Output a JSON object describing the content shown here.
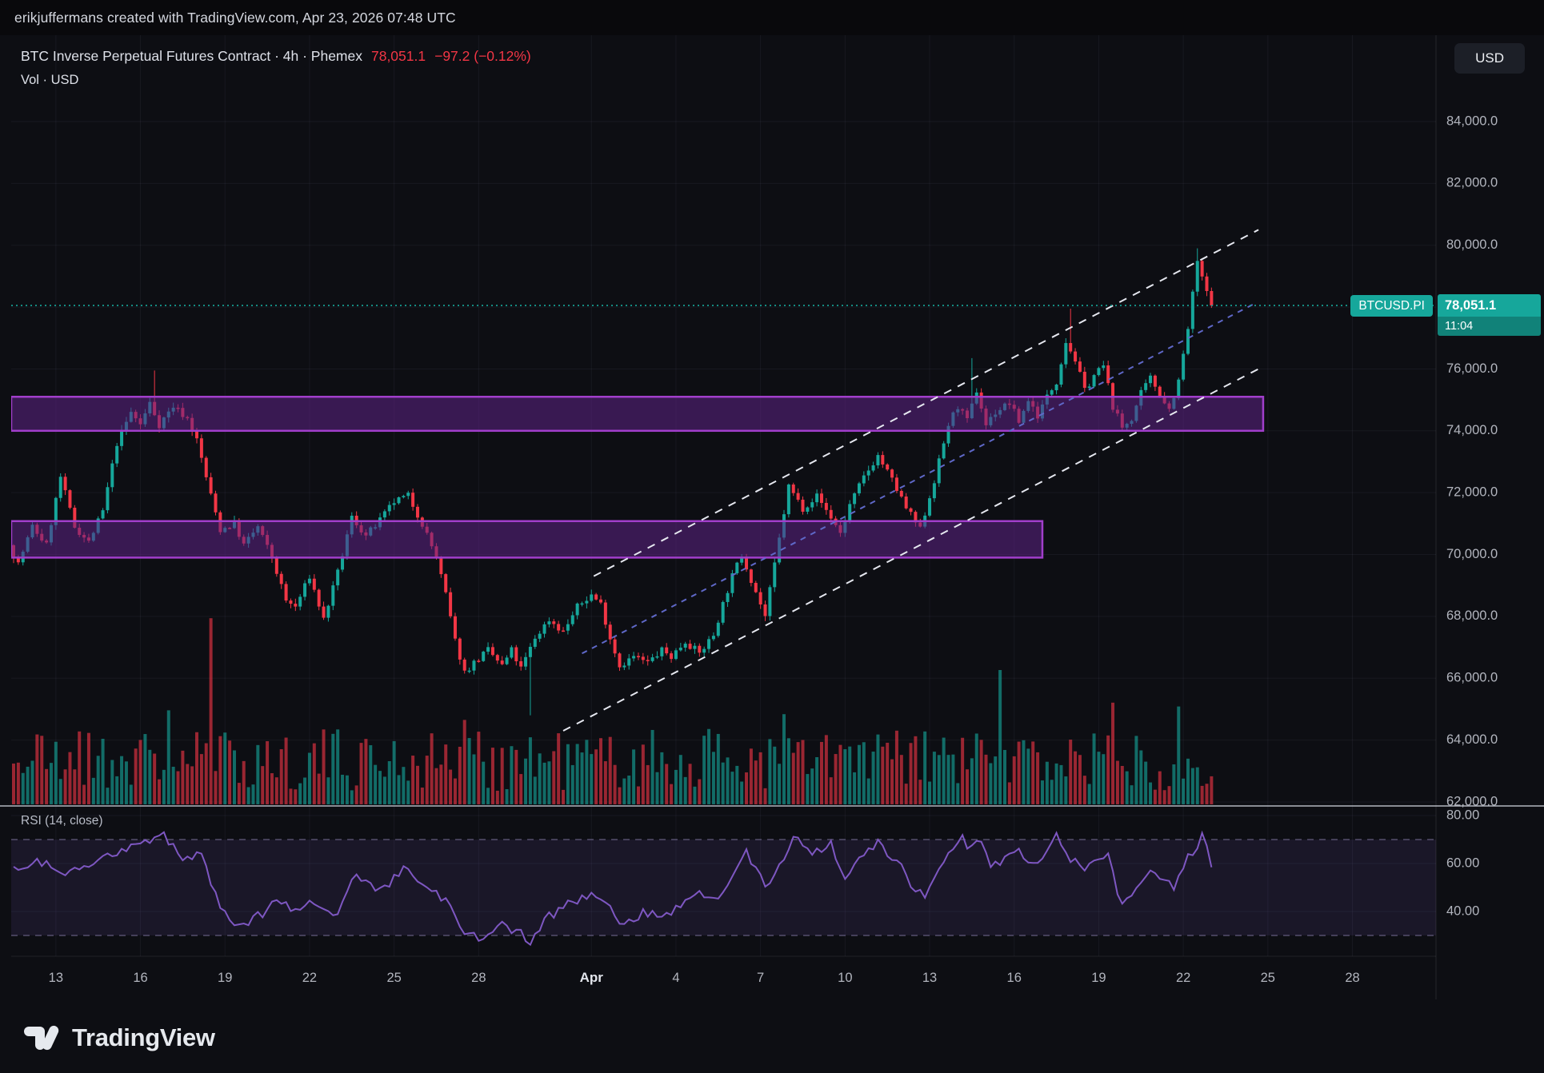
{
  "topbar": {
    "attribution": "erikjuffermans created with TradingView.com, Apr 23, 2026 07:48 UTC"
  },
  "header": {
    "symbol_line": "BTC Inverse Perpetual Futures Contract · 4h · Phemex",
    "price": "78,051.1",
    "change": "−97.2 (−0.12%)",
    "indicator_line": "Vol · USD"
  },
  "toolbar": {
    "currency_button": "USD"
  },
  "price_label": {
    "symbol": "BTCUSD.PI",
    "price": "78,051.1",
    "countdown": "11:04"
  },
  "footer": {
    "brand": "TradingView"
  },
  "colors": {
    "background": "#0d0e13",
    "topbar_background": "#09090c",
    "candle_up": "#16a79b",
    "candle_down": "#f23645",
    "accent": "#16a79b",
    "zone_fill": "rgba(94,34,135,0.55)",
    "zone_border": "#a13ecb",
    "channel_line": "#e6e8f0",
    "channel_median": "#5f68c8",
    "rsi_line": "#7e57c2",
    "rsi_band_fill": "rgba(126,87,194,0.12)",
    "rsi_level_line": "rgba(162,152,204,0.55)",
    "grid": "rgba(148,158,190,0.08)",
    "axis_text": "#b2b5be",
    "axis_text_strong": "#e2e5ec",
    "text": "#dde0e8",
    "pane_divider": "#cfd3dd"
  },
  "chart_data": {
    "type": "candlestick",
    "title": "BTC Inverse Perpetual Futures Contract",
    "interval": "4h",
    "exchange": "Phemex",
    "symbol": "BTCUSD.PI",
    "quote_currency": "USD",
    "last_price": 78051.1,
    "change": -97.2,
    "change_pct": -0.12,
    "as_of": "Apr 23, 2026 07:48 UTC",
    "y_axis": {
      "ticks": [
        84000,
        82000,
        80000,
        78000,
        76000,
        74000,
        72000,
        70000,
        68000,
        66000,
        64000,
        62000
      ],
      "labels": [
        "84,000.0",
        "82,000.0",
        "80,000.0",
        "78,000.0",
        "76,000.0",
        "74,000.0",
        "72,000.0",
        "70,000.0",
        "68,000.0",
        "66,000.0",
        "64,000.0",
        "62,000.0"
      ],
      "visible_range": [
        61200,
        84800
      ]
    },
    "x_axis": {
      "note": "4h candles, mid-March to Apr 23",
      "ticks": [
        {
          "index": 9,
          "label": "13"
        },
        {
          "index": 27,
          "label": "16"
        },
        {
          "index": 45,
          "label": "19"
        },
        {
          "index": 63,
          "label": "22"
        },
        {
          "index": 81,
          "label": "25"
        },
        {
          "index": 99,
          "label": "28"
        },
        {
          "index": 123,
          "label": "Apr",
          "strong": true
        },
        {
          "index": 141,
          "label": "4"
        },
        {
          "index": 159,
          "label": "7"
        },
        {
          "index": 177,
          "label": "10"
        },
        {
          "index": 195,
          "label": "13"
        },
        {
          "index": 213,
          "label": "16"
        },
        {
          "index": 231,
          "label": "19"
        },
        {
          "index": 249,
          "label": "22"
        },
        {
          "index": 267,
          "label": "25"
        },
        {
          "index": 285,
          "label": "28"
        }
      ]
    },
    "current_price_line": 78051.1,
    "candles": {
      "count": 256,
      "price_path_anchors": [
        [
          0,
          70300
        ],
        [
          2,
          69700
        ],
        [
          5,
          70900
        ],
        [
          8,
          70300
        ],
        [
          11,
          72500
        ],
        [
          14,
          70900
        ],
        [
          17,
          70400
        ],
        [
          20,
          71400
        ],
        [
          23,
          73600
        ],
        [
          26,
          74600
        ],
        [
          28,
          74200
        ],
        [
          30,
          74900
        ],
        [
          32,
          74200
        ],
        [
          35,
          74800
        ],
        [
          38,
          74400
        ],
        [
          40,
          73700
        ],
        [
          43,
          71900
        ],
        [
          45,
          70800
        ],
        [
          48,
          71000
        ],
        [
          50,
          70300
        ],
        [
          53,
          70900
        ],
        [
          56,
          69900
        ],
        [
          59,
          68500
        ],
        [
          61,
          68300
        ],
        [
          64,
          69300
        ],
        [
          67,
          67900
        ],
        [
          70,
          69400
        ],
        [
          73,
          71200
        ],
        [
          76,
          70600
        ],
        [
          79,
          71100
        ],
        [
          82,
          71700
        ],
        [
          85,
          71900
        ],
        [
          88,
          71000
        ],
        [
          91,
          69900
        ],
        [
          93,
          68700
        ],
        [
          95,
          67200
        ],
        [
          97,
          66200
        ],
        [
          99,
          66500
        ],
        [
          102,
          66900
        ],
        [
          105,
          66400
        ],
        [
          107,
          66900
        ],
        [
          109,
          66300
        ],
        [
          112,
          67300
        ],
        [
          115,
          67900
        ],
        [
          118,
          67500
        ],
        [
          121,
          68300
        ],
        [
          124,
          68700
        ],
        [
          126,
          68400
        ],
        [
          128,
          67300
        ],
        [
          130,
          66400
        ],
        [
          133,
          66700
        ],
        [
          136,
          66500
        ],
        [
          139,
          66900
        ],
        [
          141,
          66700
        ],
        [
          144,
          67200
        ],
        [
          147,
          66800
        ],
        [
          150,
          67400
        ],
        [
          152,
          68400
        ],
        [
          154,
          69300
        ],
        [
          156,
          70000
        ],
        [
          158,
          69200
        ],
        [
          161,
          68000
        ],
        [
          164,
          70500
        ],
        [
          166,
          72200
        ],
        [
          169,
          71500
        ],
        [
          172,
          71900
        ],
        [
          175,
          71200
        ],
        [
          177,
          70700
        ],
        [
          179,
          71600
        ],
        [
          182,
          72500
        ],
        [
          185,
          73200
        ],
        [
          188,
          72400
        ],
        [
          191,
          71500
        ],
        [
          194,
          70800
        ],
        [
          197,
          72400
        ],
        [
          200,
          74200
        ],
        [
          202,
          74800
        ],
        [
          204,
          74300
        ],
        [
          206,
          75300
        ],
        [
          208,
          74200
        ],
        [
          210,
          74600
        ],
        [
          213,
          74900
        ],
        [
          215,
          74300
        ],
        [
          217,
          75000
        ],
        [
          219,
          74500
        ],
        [
          221,
          75100
        ],
        [
          223,
          75600
        ],
        [
          225,
          76900
        ],
        [
          227,
          76300
        ],
        [
          229,
          75300
        ],
        [
          231,
          75800
        ],
        [
          233,
          76100
        ],
        [
          235,
          74800
        ],
        [
          237,
          74100
        ],
        [
          239,
          74400
        ],
        [
          241,
          75200
        ],
        [
          243,
          75700
        ],
        [
          245,
          75200
        ],
        [
          247,
          74700
        ],
        [
          249,
          75600
        ],
        [
          251,
          77300
        ],
        [
          253,
          79500
        ],
        [
          254,
          78900
        ],
        [
          255,
          78500
        ],
        [
          256,
          78051
        ]
      ],
      "wick_events": [
        {
          "i": 30,
          "high": 75950
        },
        {
          "i": 110,
          "low": 64800
        },
        {
          "i": 204,
          "high": 76350
        },
        {
          "i": 225,
          "high": 77950
        },
        {
          "i": 252,
          "high": 79900
        }
      ]
    },
    "volume": {
      "base_range_rel": [
        0.07,
        0.4
      ],
      "spikes": [
        {
          "index": 14,
          "rel": 0.38
        },
        {
          "index": 33,
          "rel": 0.49
        },
        {
          "index": 42,
          "rel": 0.97
        },
        {
          "index": 96,
          "rel": 0.44
        },
        {
          "index": 164,
          "rel": 0.47
        },
        {
          "index": 210,
          "rel": 0.7
        },
        {
          "index": 234,
          "rel": 0.53
        },
        {
          "index": 248,
          "rel": 0.51
        }
      ]
    },
    "zones": [
      {
        "name": "upper-supply-zone",
        "price_top": 75100,
        "price_bottom": 74000,
        "from_index": 0,
        "to_index": 266
      },
      {
        "name": "lower-demand-zone",
        "price_top": 71080,
        "price_bottom": 69900,
        "from_index": 0,
        "to_index": 219
      }
    ],
    "channel": {
      "lower": [
        [
          117,
          64300
        ],
        [
          265,
          76000
        ]
      ],
      "upper": [
        [
          123.5,
          69300
        ],
        [
          265,
          80500
        ]
      ],
      "median": [
        [
          121,
          66800
        ],
        [
          264,
          78100
        ]
      ]
    },
    "rsi": {
      "type": "line",
      "label": "RSI (14, close)",
      "period": 14,
      "source": "close",
      "levels": [
        70,
        30
      ],
      "axis_values": [
        80,
        60,
        40
      ],
      "axis_labels": [
        "80.00",
        "60.00",
        "40.00"
      ],
      "path_anchors": [
        [
          0,
          57
        ],
        [
          5,
          62
        ],
        [
          10,
          55
        ],
        [
          15,
          58
        ],
        [
          22,
          64
        ],
        [
          28,
          70
        ],
        [
          32,
          72
        ],
        [
          36,
          62
        ],
        [
          40,
          65
        ],
        [
          44,
          40
        ],
        [
          48,
          34
        ],
        [
          52,
          38
        ],
        [
          56,
          44
        ],
        [
          60,
          40
        ],
        [
          64,
          45
        ],
        [
          68,
          37
        ],
        [
          73,
          55
        ],
        [
          78,
          48
        ],
        [
          83,
          57
        ],
        [
          88,
          52
        ],
        [
          92,
          44
        ],
        [
          96,
          31
        ],
        [
          100,
          28
        ],
        [
          104,
          34
        ],
        [
          108,
          31
        ],
        [
          110,
          27
        ],
        [
          114,
          38
        ],
        [
          118,
          43
        ],
        [
          122,
          47
        ],
        [
          126,
          44
        ],
        [
          130,
          33
        ],
        [
          134,
          40
        ],
        [
          138,
          38
        ],
        [
          142,
          42
        ],
        [
          146,
          47
        ],
        [
          150,
          45
        ],
        [
          154,
          58
        ],
        [
          156,
          65
        ],
        [
          160,
          50
        ],
        [
          164,
          62
        ],
        [
          166,
          71
        ],
        [
          170,
          64
        ],
        [
          174,
          68
        ],
        [
          177,
          55
        ],
        [
          180,
          62
        ],
        [
          184,
          69
        ],
        [
          188,
          61
        ],
        [
          191,
          52
        ],
        [
          194,
          45
        ],
        [
          198,
          60
        ],
        [
          202,
          70
        ],
        [
          204,
          66
        ],
        [
          206,
          69
        ],
        [
          208,
          58
        ],
        [
          211,
          62
        ],
        [
          214,
          65
        ],
        [
          217,
          60
        ],
        [
          220,
          64
        ],
        [
          222,
          71
        ],
        [
          225,
          62
        ],
        [
          228,
          57
        ],
        [
          230,
          60
        ],
        [
          233,
          63
        ],
        [
          236,
          42
        ],
        [
          239,
          50
        ],
        [
          242,
          58
        ],
        [
          245,
          52
        ],
        [
          247,
          50
        ],
        [
          250,
          62
        ],
        [
          253,
          71
        ],
        [
          255,
          60
        ]
      ]
    }
  }
}
